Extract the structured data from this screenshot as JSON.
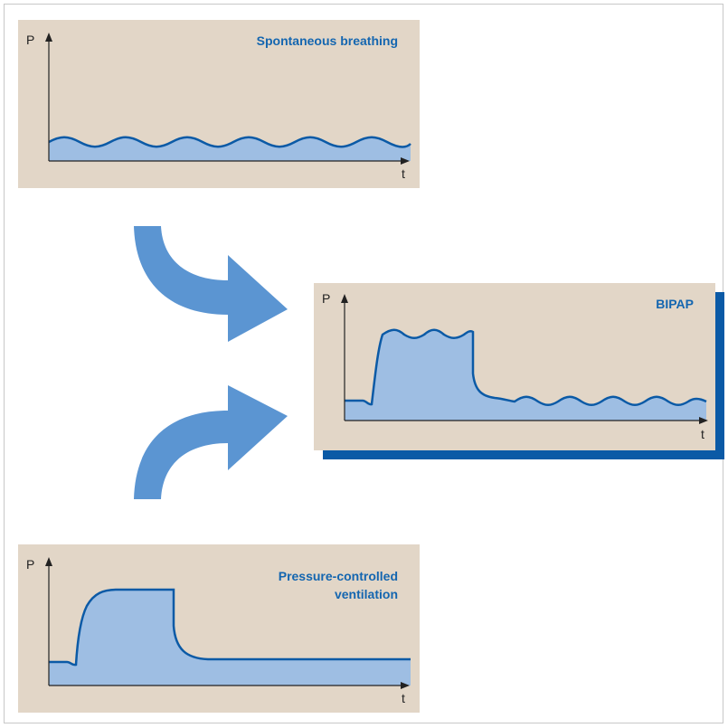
{
  "colors": {
    "panel_bg": "#e2d6c7",
    "wave_fill": "#9ebee3",
    "wave_stroke": "#0b5aa6",
    "axis": "#222222",
    "title": "#1466b0",
    "arrow": "#5b95d2",
    "shadow": "#0b5aa6"
  },
  "icons": {
    "upper_arrow": "curved-arrow-down-right-icon",
    "lower_arrow": "curved-arrow-up-right-icon"
  },
  "panels": {
    "spontaneous": {
      "title_lines": [
        "Spontaneous breathing"
      ],
      "y_label": "P",
      "x_label": "t"
    },
    "bipap": {
      "title_lines": [
        "BIPAP"
      ],
      "y_label": "P",
      "x_label": "t"
    },
    "pcv": {
      "title_lines": [
        "Pressure-controlled",
        "ventilation"
      ],
      "y_label": "P",
      "x_label": "t"
    }
  }
}
